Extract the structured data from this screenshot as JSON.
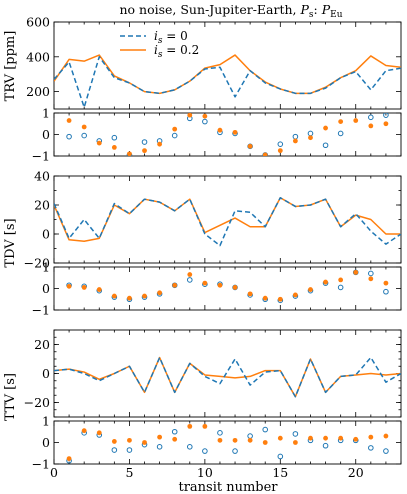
{
  "figure": {
    "title_prefix": "no noise, Sun-Jupiter-Earth, ",
    "title_ratio_a": "P",
    "title_ratio_a_sub": "s",
    "title_ratio_sep": ": ",
    "title_ratio_b": "P",
    "title_ratio_b_sub": "Eu",
    "xlabel": "transit number"
  },
  "colors": {
    "blue": "#1f77b4",
    "orange": "#ff7f0e",
    "gray": "#7f7f7f"
  },
  "legend": {
    "symbol": "i",
    "symbol_sub": "s",
    "entries": [
      {
        "series": "blue",
        "value": " = 0"
      },
      {
        "series": "orange",
        "value": " = 0.2"
      }
    ]
  },
  "chart_data": [
    {
      "type": "line",
      "panel": "TRV",
      "ylabel": "TRV [ppm]",
      "xlim": [
        0,
        23
      ],
      "ylim": [
        100,
        600
      ],
      "yticks": [
        200,
        400,
        600
      ],
      "x": [
        0,
        1,
        2,
        3,
        4,
        5,
        6,
        7,
        8,
        9,
        10,
        11,
        12,
        13,
        14,
        15,
        16,
        17,
        18,
        19,
        20,
        21,
        22,
        23
      ],
      "series": [
        {
          "name": "is = 0",
          "color": "blue",
          "dashed": true,
          "values": [
            270,
            370,
            110,
            400,
            280,
            250,
            200,
            190,
            210,
            260,
            330,
            340,
            170,
            320,
            250,
            215,
            190,
            190,
            220,
            280,
            315,
            210,
            320,
            335
          ]
        },
        {
          "name": "is = 0.2",
          "color": "orange",
          "dashed": false,
          "values": [
            260,
            385,
            375,
            410,
            290,
            250,
            200,
            190,
            210,
            260,
            335,
            355,
            410,
            320,
            255,
            215,
            190,
            190,
            225,
            280,
            320,
            405,
            350,
            340
          ]
        }
      ]
    },
    {
      "type": "scatter",
      "panel": "TRV residual",
      "xlim": [
        0,
        23
      ],
      "ylim": [
        -1,
        1
      ],
      "yticks": [
        -1,
        0,
        1
      ],
      "series": [
        {
          "color": "blue",
          "marker": "open",
          "x": [
            1,
            2,
            3,
            4,
            5,
            6,
            7,
            8,
            9,
            10,
            11,
            12,
            13,
            14,
            15,
            16,
            17,
            18,
            19,
            21,
            22
          ],
          "y": [
            -0.1,
            -0.05,
            -0.3,
            -0.15,
            -0.95,
            -0.35,
            -0.3,
            -0.05,
            0.75,
            0.6,
            0.1,
            0.05,
            -0.55,
            -0.95,
            -0.45,
            -0.1,
            0.05,
            -0.5,
            0.05,
            0.8,
            0.9
          ]
        },
        {
          "color": "orange",
          "marker": "filled",
          "x": [
            1,
            2,
            3,
            4,
            5,
            6,
            7,
            8,
            9,
            10,
            11,
            12,
            13,
            14,
            15,
            16,
            17,
            18,
            19,
            20,
            21,
            22
          ],
          "y": [
            0.65,
            0.35,
            -0.4,
            -0.6,
            -0.9,
            -0.75,
            -0.45,
            0.25,
            0.9,
            0.85,
            0.2,
            0.1,
            -0.55,
            -0.95,
            -0.75,
            -0.3,
            -0.15,
            0.3,
            0.6,
            0.65,
            0.4,
            0.5
          ]
        }
      ]
    },
    {
      "type": "line",
      "panel": "TDV",
      "ylabel": "TDV [s]",
      "xlim": [
        0,
        23
      ],
      "ylim": [
        -20,
        40
      ],
      "yticks": [
        -20,
        0,
        20,
        40
      ],
      "x": [
        0,
        1,
        2,
        3,
        4,
        5,
        6,
        7,
        8,
        9,
        10,
        11,
        12,
        13,
        14,
        15,
        16,
        17,
        18,
        19,
        20,
        21,
        22,
        23
      ],
      "series": [
        {
          "name": "is = 0",
          "color": "blue",
          "dashed": true,
          "values": [
            21,
            -3,
            10,
            -3,
            21,
            14,
            24,
            22,
            16,
            24,
            0,
            -8,
            16,
            15,
            5,
            25,
            19,
            20,
            24,
            5,
            14,
            2,
            -7,
            0
          ]
        },
        {
          "name": "is = 0.2",
          "color": "orange",
          "dashed": false,
          "values": [
            20,
            -4,
            -5,
            -3,
            20,
            14,
            24,
            22,
            16,
            24,
            1,
            6,
            11,
            5,
            5,
            25,
            19,
            20,
            24,
            5,
            13,
            10,
            0,
            0
          ]
        }
      ]
    },
    {
      "type": "scatter",
      "panel": "TDV residual",
      "xlim": [
        0,
        23
      ],
      "ylim": [
        -1,
        1
      ],
      "yticks": [
        -1,
        0,
        1
      ],
      "series": [
        {
          "color": "blue",
          "marker": "open",
          "x": [
            1,
            2,
            3,
            4,
            5,
            6,
            7,
            8,
            9,
            10,
            11,
            12,
            13,
            14,
            15,
            16,
            17,
            18,
            19,
            20,
            21,
            22
          ],
          "y": [
            0.15,
            0.1,
            -0.1,
            -0.4,
            -0.5,
            -0.4,
            -0.25,
            0.15,
            0.4,
            0.2,
            0.2,
            0.05,
            -0.3,
            -0.5,
            -0.55,
            -0.35,
            -0.1,
            0.25,
            0.05,
            0.75,
            0.7,
            -0.15
          ]
        },
        {
          "color": "orange",
          "marker": "filled",
          "x": [
            1,
            2,
            3,
            4,
            5,
            6,
            7,
            8,
            9,
            10,
            11,
            12,
            13,
            14,
            15,
            16,
            17,
            18,
            19,
            20,
            21,
            22
          ],
          "y": [
            0.1,
            0.05,
            -0.05,
            -0.35,
            -0.45,
            -0.35,
            -0.2,
            0.15,
            0.65,
            0.25,
            0.15,
            0.05,
            -0.25,
            -0.45,
            -0.5,
            -0.3,
            -0.05,
            0.3,
            0.4,
            0.75,
            0.45,
            0.25
          ]
        }
      ]
    },
    {
      "type": "line",
      "panel": "TTV",
      "ylabel": "TTV [s]",
      "xlim": [
        0,
        23
      ],
      "ylim": [
        -30,
        30
      ],
      "yticks": [
        -20,
        0,
        20
      ],
      "x": [
        0,
        1,
        2,
        3,
        4,
        5,
        6,
        7,
        8,
        9,
        10,
        11,
        12,
        13,
        14,
        15,
        16,
        17,
        18,
        19,
        20,
        21,
        22,
        23
      ],
      "series": [
        {
          "name": "is = 0",
          "color": "blue",
          "dashed": true,
          "values": [
            2,
            3,
            0,
            -5,
            0,
            5,
            -13,
            11,
            -13,
            7,
            -2,
            -7,
            10,
            -8,
            1,
            2,
            -16,
            10,
            -13,
            -2,
            -1,
            11,
            -6,
            0
          ]
        },
        {
          "name": "is = 0.2",
          "color": "orange",
          "dashed": false,
          "values": [
            2,
            3,
            1,
            -4,
            0,
            5,
            -13,
            11,
            -13,
            7,
            -1,
            -2,
            -3,
            -2,
            2,
            2,
            -16,
            10,
            -13,
            -2,
            -1,
            0,
            -1,
            0
          ]
        }
      ]
    },
    {
      "type": "scatter",
      "panel": "TTV residual",
      "xlim": [
        0,
        23
      ],
      "ylim": [
        -1,
        1
      ],
      "yticks": [
        -1,
        0,
        1
      ],
      "series": [
        {
          "color": "blue",
          "marker": "open",
          "x": [
            1,
            2,
            3,
            4,
            5,
            6,
            7,
            8,
            9,
            10,
            11,
            12,
            13,
            14,
            15,
            16,
            17,
            18,
            19,
            20,
            21,
            22
          ],
          "y": [
            -0.85,
            0.45,
            0.35,
            -0.35,
            -0.35,
            -0.1,
            -0.2,
            0.5,
            -0.2,
            -0.4,
            0.45,
            -0.4,
            0.3,
            0.6,
            -0.65,
            0.4,
            0.1,
            -0.15,
            0.1,
            0.1,
            -0.25,
            -0.4
          ]
        },
        {
          "color": "orange",
          "marker": "filled",
          "x": [
            1,
            2,
            3,
            4,
            5,
            6,
            7,
            8,
            9,
            10,
            11,
            12,
            13,
            14,
            15,
            16,
            17,
            18,
            19,
            20,
            21,
            22
          ],
          "y": [
            -0.75,
            0.55,
            0.45,
            0.05,
            0.1,
            0.0,
            0.25,
            0.15,
            0.75,
            0.75,
            0.1,
            0.1,
            0.1,
            0.0,
            0.2,
            0.0,
            0.2,
            0.2,
            0.2,
            0.15,
            0.25,
            0.3
          ]
        }
      ]
    }
  ]
}
